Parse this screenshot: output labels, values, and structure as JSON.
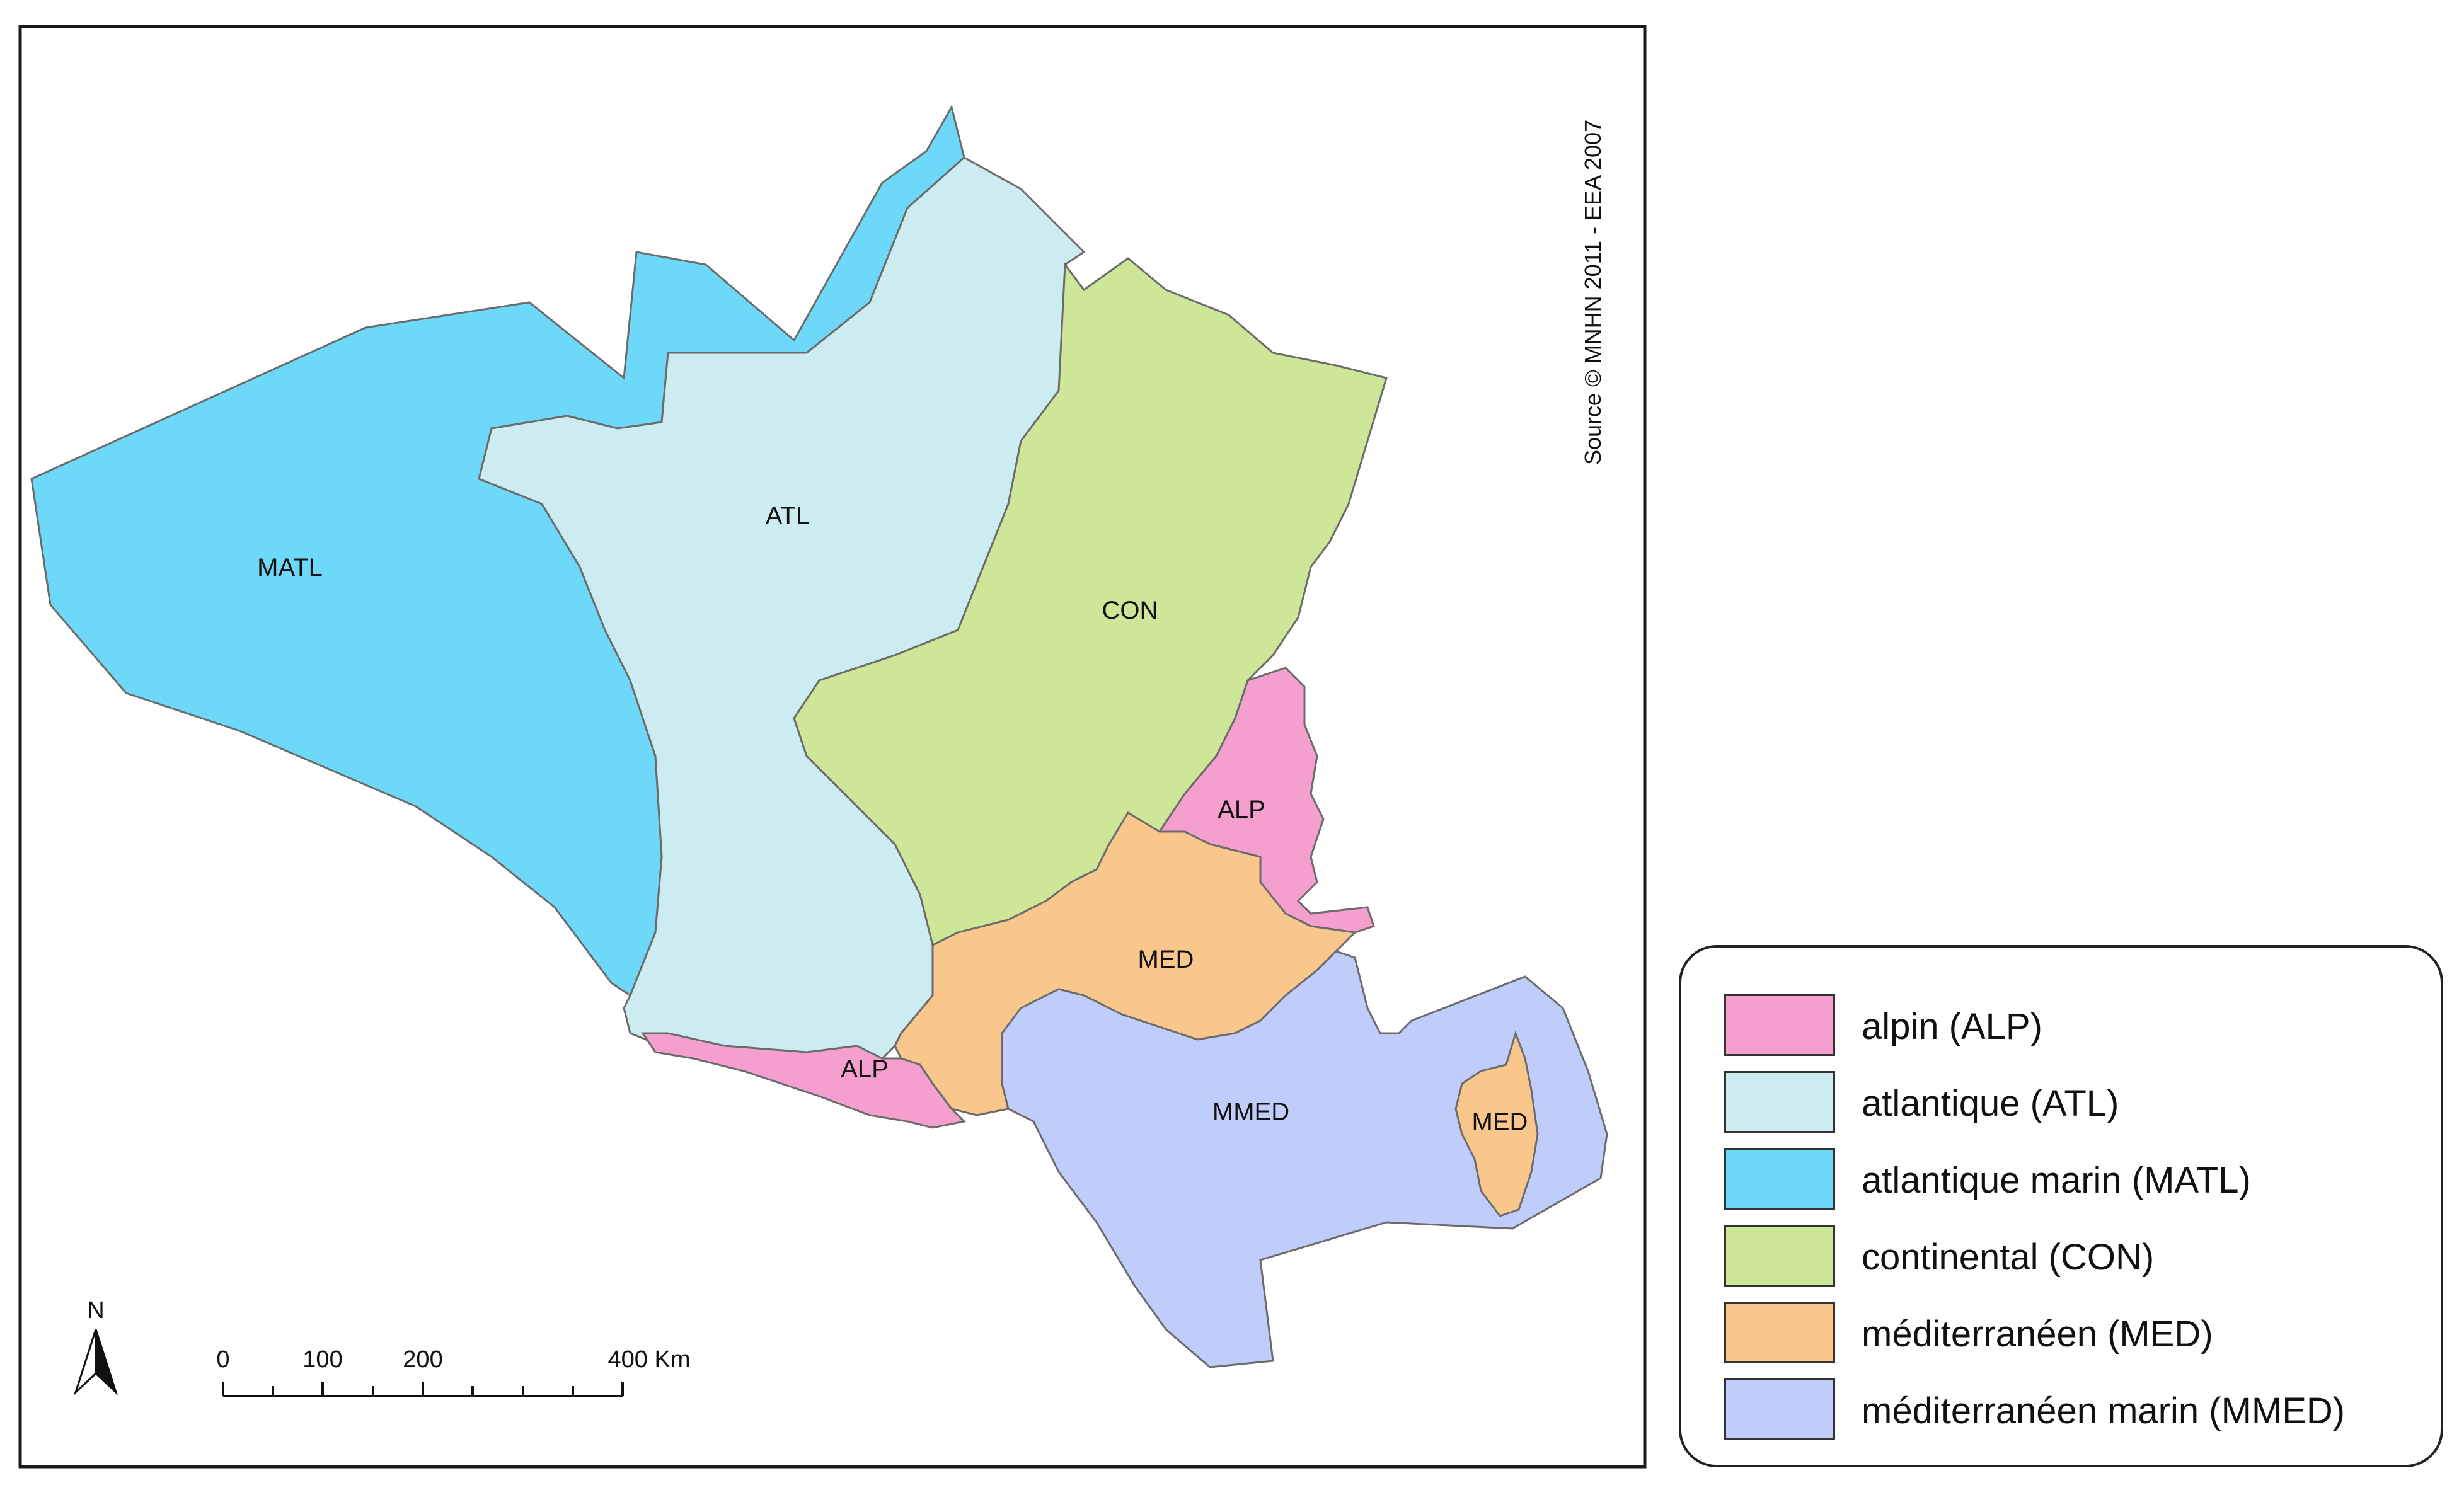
{
  "source_credit": "Source © MNHN 2011  -  EEA 2007",
  "north_label": "N",
  "scale_bar": {
    "ticks": [
      "0",
      "100",
      "200",
      "400 Km"
    ]
  },
  "region_labels": {
    "matl": "MATL",
    "atl": "ATL",
    "con": "CON",
    "alp_east": "ALP",
    "alp_south": "ALP",
    "med": "MED",
    "mmed": "MMED",
    "med_corsica": "MED"
  },
  "colors": {
    "alp": "#f59fcf",
    "atl": "#ccecf2",
    "matl": "#6ed8f8",
    "con": "#cde697",
    "med": "#f9c68c",
    "mmed": "#c0cdfb",
    "border": "#6b6b6b"
  },
  "legend": [
    {
      "label": "alpin (ALP)",
      "color": "#f59fcf"
    },
    {
      "label": "atlantique (ATL)",
      "color": "#ccecf2"
    },
    {
      "label": "atlantique marin  (MATL)",
      "color": "#6ed8f8"
    },
    {
      "label": "continental (CON)",
      "color": "#cde697"
    },
    {
      "label": "méditerranéen (MED)",
      "color": "#f9c68c"
    },
    {
      "label": "méditerranéen marin (MMED)",
      "color": "#c0cdfb"
    }
  ]
}
